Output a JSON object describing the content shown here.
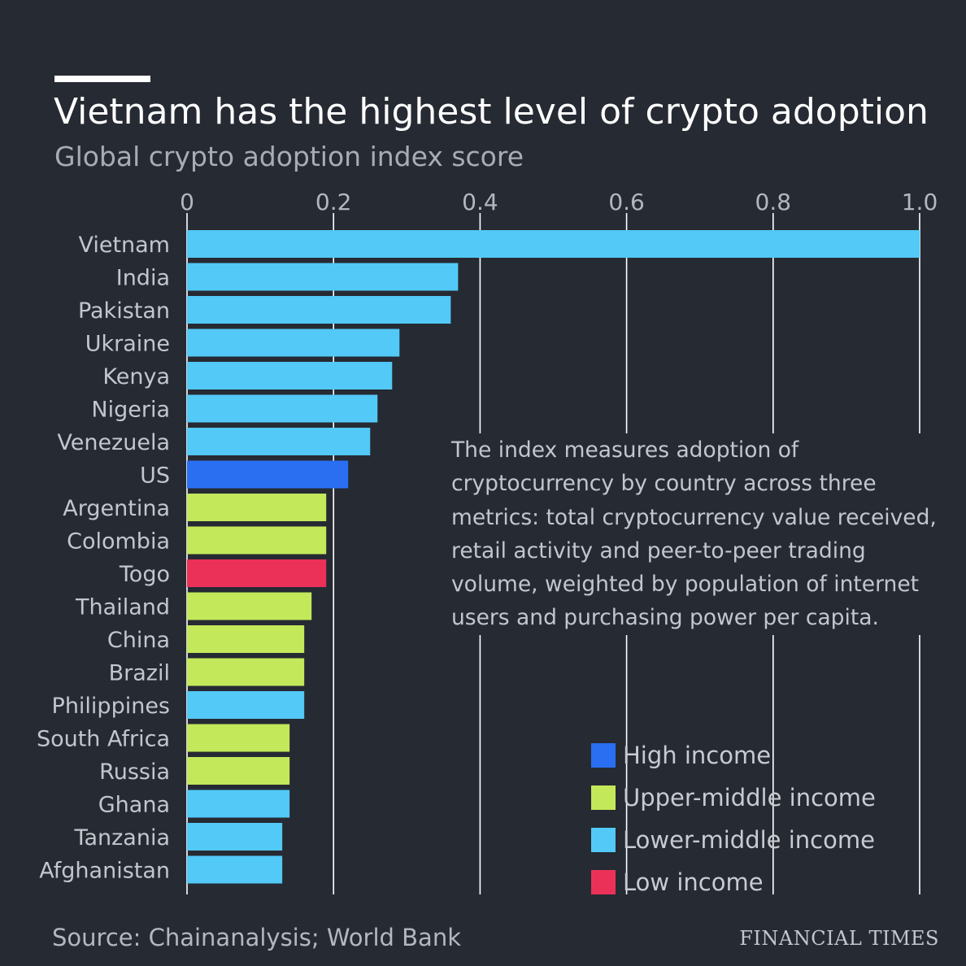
{
  "title": "Vietnam has the highest level of crypto adoption",
  "subtitle": "Global crypto adoption index score",
  "note": "The index measures adoption of cryptocurrency by country across three metrics: total cryptocurrency value received, retail activity and peer-to-peer trading volume, weighted by population of internet users and purchasing power per capita.",
  "source": "Source: Chainanalysis; World Bank",
  "brand": "FINANCIAL TIMES",
  "colors": {
    "background": "#262a33",
    "high": "#2a6ff2",
    "upper_middle": "#c3e85a",
    "lower_middle": "#52c9f7",
    "low": "#ec3158",
    "gridline": "#ffffff"
  },
  "legend": [
    {
      "key": "high",
      "label": "High income"
    },
    {
      "key": "upper_middle",
      "label": "Upper-middle income"
    },
    {
      "key": "lower_middle",
      "label": "Lower-middle income"
    },
    {
      "key": "low",
      "label": "Low income"
    }
  ],
  "chart_data": {
    "type": "bar",
    "orientation": "horizontal",
    "title": "Vietnam has the highest level of crypto adoption",
    "subtitle": "Global crypto adoption index score",
    "xlim": [
      0,
      1.0
    ],
    "ticks": [
      0,
      0.2,
      0.4,
      0.6,
      0.8,
      1.0
    ],
    "tick_labels": [
      "0",
      "0.2",
      "0.4",
      "0.6",
      "0.8",
      "1.0"
    ],
    "grid": true,
    "legend_position": "bottom-right",
    "categories": [
      "Vietnam",
      "India",
      "Pakistan",
      "Ukraine",
      "Kenya",
      "Nigeria",
      "Venezuela",
      "US",
      "Argentina",
      "Colombia",
      "Togo",
      "Thailand",
      "China",
      "Brazil",
      "Philippines",
      "South Africa",
      "Russia",
      "Ghana",
      "Tanzania",
      "Afghanistan"
    ],
    "values": [
      1.0,
      0.37,
      0.36,
      0.29,
      0.28,
      0.26,
      0.25,
      0.22,
      0.19,
      0.19,
      0.19,
      0.17,
      0.16,
      0.16,
      0.16,
      0.14,
      0.14,
      0.14,
      0.13,
      0.13
    ],
    "income_groups": [
      "lower_middle",
      "lower_middle",
      "lower_middle",
      "lower_middle",
      "lower_middle",
      "lower_middle",
      "lower_middle",
      "high",
      "upper_middle",
      "upper_middle",
      "low",
      "upper_middle",
      "upper_middle",
      "upper_middle",
      "lower_middle",
      "upper_middle",
      "upper_middle",
      "lower_middle",
      "lower_middle",
      "lower_middle"
    ]
  }
}
